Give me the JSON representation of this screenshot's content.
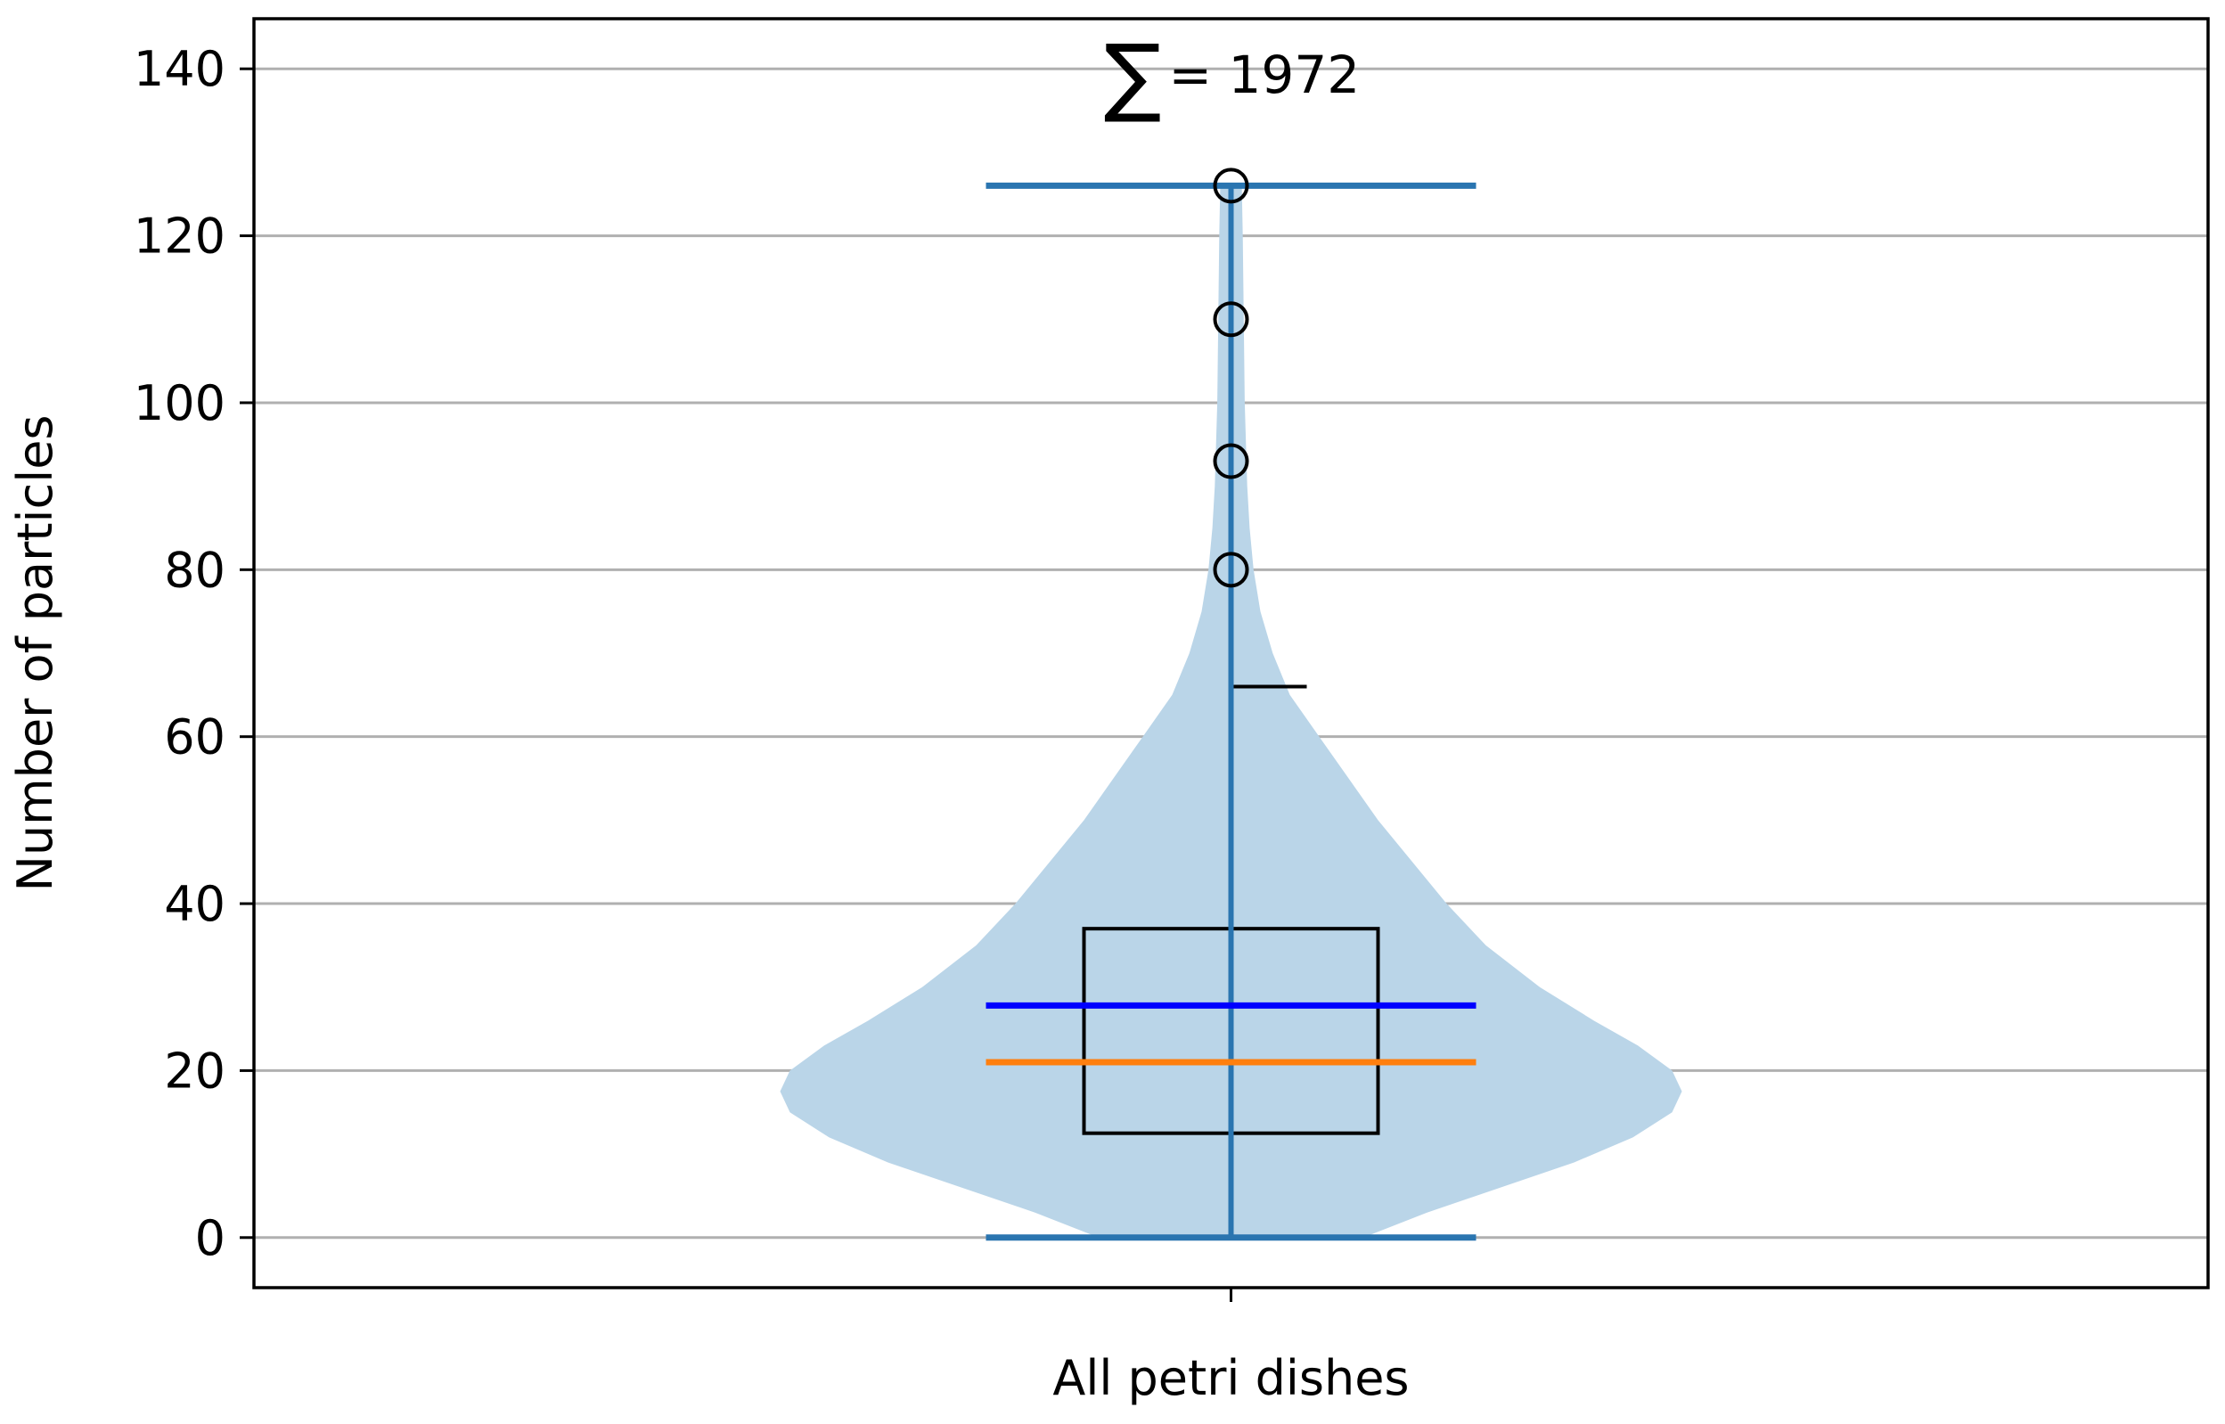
{
  "chart_data": {
    "type": "violin",
    "categories": [
      "All petri dishes"
    ],
    "xlabel": "All petri dishes",
    "ylabel": "Number of particles",
    "ylim": [
      -6,
      146
    ],
    "yticks": [
      0,
      20,
      40,
      60,
      80,
      100,
      120,
      140
    ],
    "grid": "horizontal",
    "annotation": {
      "symbol": "∑",
      "text": "= 1972"
    },
    "stats": {
      "min": 0,
      "max": 126,
      "q1": 12.5,
      "q3": 37,
      "median": 21,
      "mean": 27.8,
      "upper_whisker": 66,
      "outliers": [
        80,
        93,
        110,
        126
      ]
    },
    "density_profile": {
      "y": [
        0,
        3,
        6,
        9,
        12,
        15,
        17.5,
        20,
        23,
        26,
        30,
        35,
        40,
        45,
        50,
        55,
        60,
        65,
        70,
        75,
        80,
        85,
        90,
        100,
        110,
        120,
        126
      ],
      "half_width": [
        0.27,
        0.4,
        0.55,
        0.7,
        0.82,
        0.9,
        0.92,
        0.9,
        0.83,
        0.74,
        0.63,
        0.52,
        0.44,
        0.37,
        0.3,
        0.24,
        0.18,
        0.12,
        0.085,
        0.06,
        0.046,
        0.038,
        0.033,
        0.028,
        0.026,
        0.024,
        0.022
      ]
    },
    "colors": {
      "violin_fill": "#bad5e8",
      "extrema": "#2a75b0",
      "mean": "#0000ff",
      "median": "#ff7f0e",
      "box": "#000000",
      "grid": "#b0b0b0"
    }
  }
}
